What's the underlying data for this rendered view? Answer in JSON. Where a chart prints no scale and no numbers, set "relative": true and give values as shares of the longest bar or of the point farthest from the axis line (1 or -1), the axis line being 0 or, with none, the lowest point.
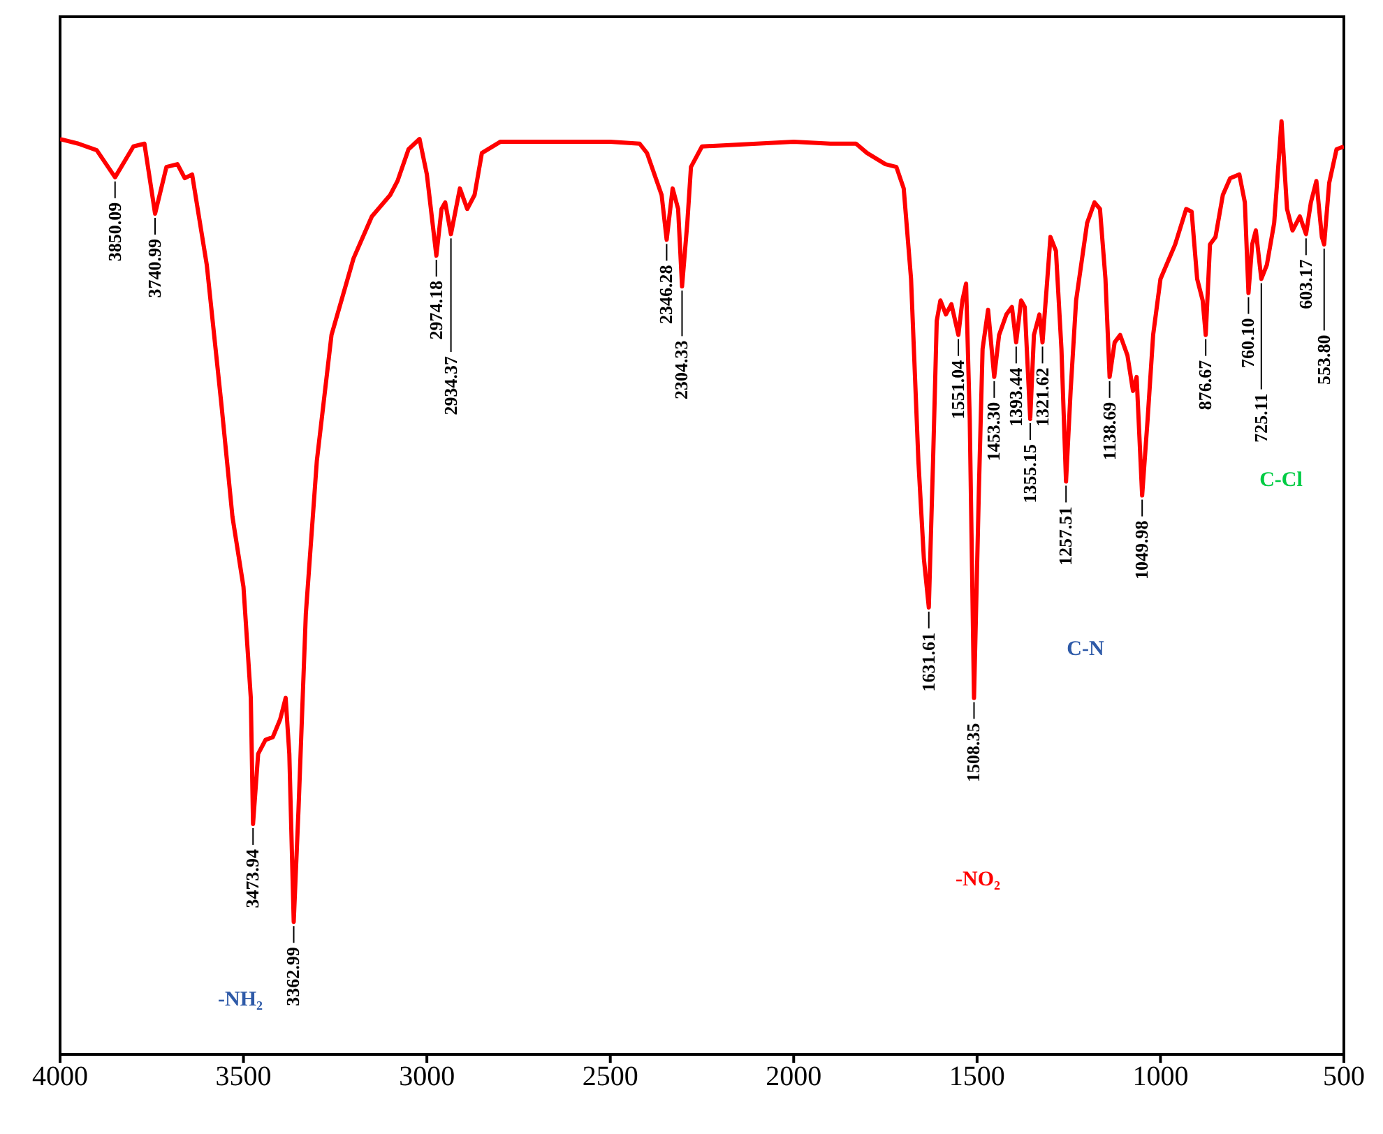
{
  "chart_data": {
    "type": "line",
    "relative": true,
    "tick_labels": "x",
    "marker": "none",
    "line_style": "solid",
    "xlim": [
      4000,
      500
    ],
    "xticks": [
      4000,
      3500,
      3000,
      2500,
      2000,
      1500,
      1000,
      500
    ],
    "x": [
      4000,
      3950,
      3900,
      3850.09,
      3800,
      3770,
      3740.99,
      3710,
      3680,
      3660,
      3640,
      3600,
      3560,
      3530,
      3500,
      3480,
      3473.94,
      3460,
      3440,
      3420,
      3400,
      3385,
      3375,
      3362.99,
      3350,
      3330,
      3300,
      3260,
      3200,
      3150,
      3100,
      3080,
      3050,
      3020,
      3000,
      2974.18,
      2960,
      2950,
      2934.37,
      2910,
      2890,
      2870,
      2850,
      2800,
      2500,
      2420,
      2400,
      2360,
      2346.28,
      2330,
      2315,
      2304.33,
      2290,
      2280,
      2250,
      2000,
      1900,
      1830,
      1800,
      1750,
      1720,
      1700,
      1680,
      1660,
      1645,
      1631.61,
      1620,
      1610,
      1600,
      1585,
      1570,
      1551.04,
      1540,
      1530,
      1520,
      1508.35,
      1495,
      1485,
      1470,
      1453.3,
      1440,
      1420,
      1405,
      1393.44,
      1380,
      1370,
      1355.15,
      1345,
      1330,
      1321.62,
      1310,
      1300,
      1285,
      1270,
      1257.51,
      1245,
      1230,
      1200,
      1180,
      1165,
      1150,
      1138.69,
      1125,
      1110,
      1090,
      1075,
      1065,
      1049.98,
      1035,
      1020,
      1000,
      960,
      930,
      915,
      900,
      885,
      876.67,
      865,
      850,
      830,
      810,
      785,
      770,
      760.1,
      750,
      740,
      725.11,
      710,
      690,
      670,
      655,
      640,
      620,
      603.17,
      590,
      575,
      560,
      553.8,
      540,
      520,
      500
    ],
    "series": [
      {
        "color": "#ff0000",
        "values": [
          0.981,
          0.976,
          0.969,
          0.94,
          0.973,
          0.976,
          0.901,
          0.951,
          0.954,
          0.939,
          0.943,
          0.846,
          0.696,
          0.576,
          0.501,
          0.382,
          0.247,
          0.322,
          0.337,
          0.34,
          0.359,
          0.382,
          0.322,
          0.142,
          0.262,
          0.472,
          0.636,
          0.771,
          0.853,
          0.898,
          0.921,
          0.936,
          0.97,
          0.981,
          0.943,
          0.856,
          0.906,
          0.913,
          0.879,
          0.928,
          0.906,
          0.921,
          0.966,
          0.978,
          0.978,
          0.976,
          0.966,
          0.921,
          0.873,
          0.928,
          0.906,
          0.823,
          0.891,
          0.951,
          0.973,
          0.978,
          0.976,
          0.976,
          0.966,
          0.954,
          0.951,
          0.928,
          0.831,
          0.636,
          0.531,
          0.479,
          0.636,
          0.786,
          0.808,
          0.793,
          0.804,
          0.771,
          0.808,
          0.826,
          0.681,
          0.382,
          0.606,
          0.756,
          0.798,
          0.726,
          0.771,
          0.793,
          0.801,
          0.763,
          0.808,
          0.801,
          0.681,
          0.771,
          0.793,
          0.763,
          0.823,
          0.876,
          0.861,
          0.756,
          0.614,
          0.711,
          0.808,
          0.891,
          0.913,
          0.906,
          0.831,
          0.726,
          0.763,
          0.771,
          0.749,
          0.711,
          0.726,
          0.599,
          0.681,
          0.771,
          0.831,
          0.868,
          0.906,
          0.903,
          0.831,
          0.808,
          0.771,
          0.868,
          0.876,
          0.921,
          0.939,
          0.943,
          0.913,
          0.816,
          0.868,
          0.883,
          0.831,
          0.846,
          0.891,
          1,
          0.906,
          0.883,
          0.898,
          0.879,
          0.913,
          0.936,
          0.876,
          0.868,
          0.934,
          0.97,
          0.973
        ]
      }
    ],
    "annotations": [
      {
        "text": "3850.09",
        "x": 3850.09,
        "y": 0.94
      },
      {
        "text": "3740.99",
        "x": 3740.99,
        "y": 0.901
      },
      {
        "text": "3473.94",
        "x": 3473.94,
        "y": 0.247
      },
      {
        "text": "3362.99",
        "x": 3362.99,
        "y": 0.142
      },
      {
        "text": "2974.18",
        "x": 2974.18,
        "y": 0.856
      },
      {
        "text": "2934.37",
        "x": 2934.37,
        "y": 0.879
      },
      {
        "text": "2346.28",
        "x": 2346.28,
        "y": 0.873
      },
      {
        "text": "2304.33",
        "x": 2304.33,
        "y": 0.823
      },
      {
        "text": "1631.61",
        "x": 1631.61,
        "y": 0.479
      },
      {
        "text": "1551.04",
        "x": 1551.04,
        "y": 0.771
      },
      {
        "text": "1508.35",
        "x": 1508.35,
        "y": 0.382
      },
      {
        "text": "1453.30",
        "x": 1453.3,
        "y": 0.726
      },
      {
        "text": "1393.44",
        "x": 1393.44,
        "y": 0.763
      },
      {
        "text": "1355.15",
        "x": 1355.15,
        "y": 0.681
      },
      {
        "text": "1321.62",
        "x": 1321.62,
        "y": 0.763
      },
      {
        "text": "1257.51",
        "x": 1257.51,
        "y": 0.614
      },
      {
        "text": "1138.69",
        "x": 1138.69,
        "y": 0.726
      },
      {
        "text": "1049.98",
        "x": 1049.98,
        "y": 0.599
      },
      {
        "text": "876.67",
        "x": 876.67,
        "y": 0.771
      },
      {
        "text": "760.10",
        "x": 760.1,
        "y": 0.816
      },
      {
        "text": "725.11",
        "x": 725.11,
        "y": 0.831
      },
      {
        "text": "603.17",
        "x": 603.17,
        "y": 0.879
      },
      {
        "text": "553.80",
        "x": 553.8,
        "y": 0.868
      },
      "-NH₂",
      "-NO₂",
      "C-N",
      "C-Cl"
    ]
  }
}
